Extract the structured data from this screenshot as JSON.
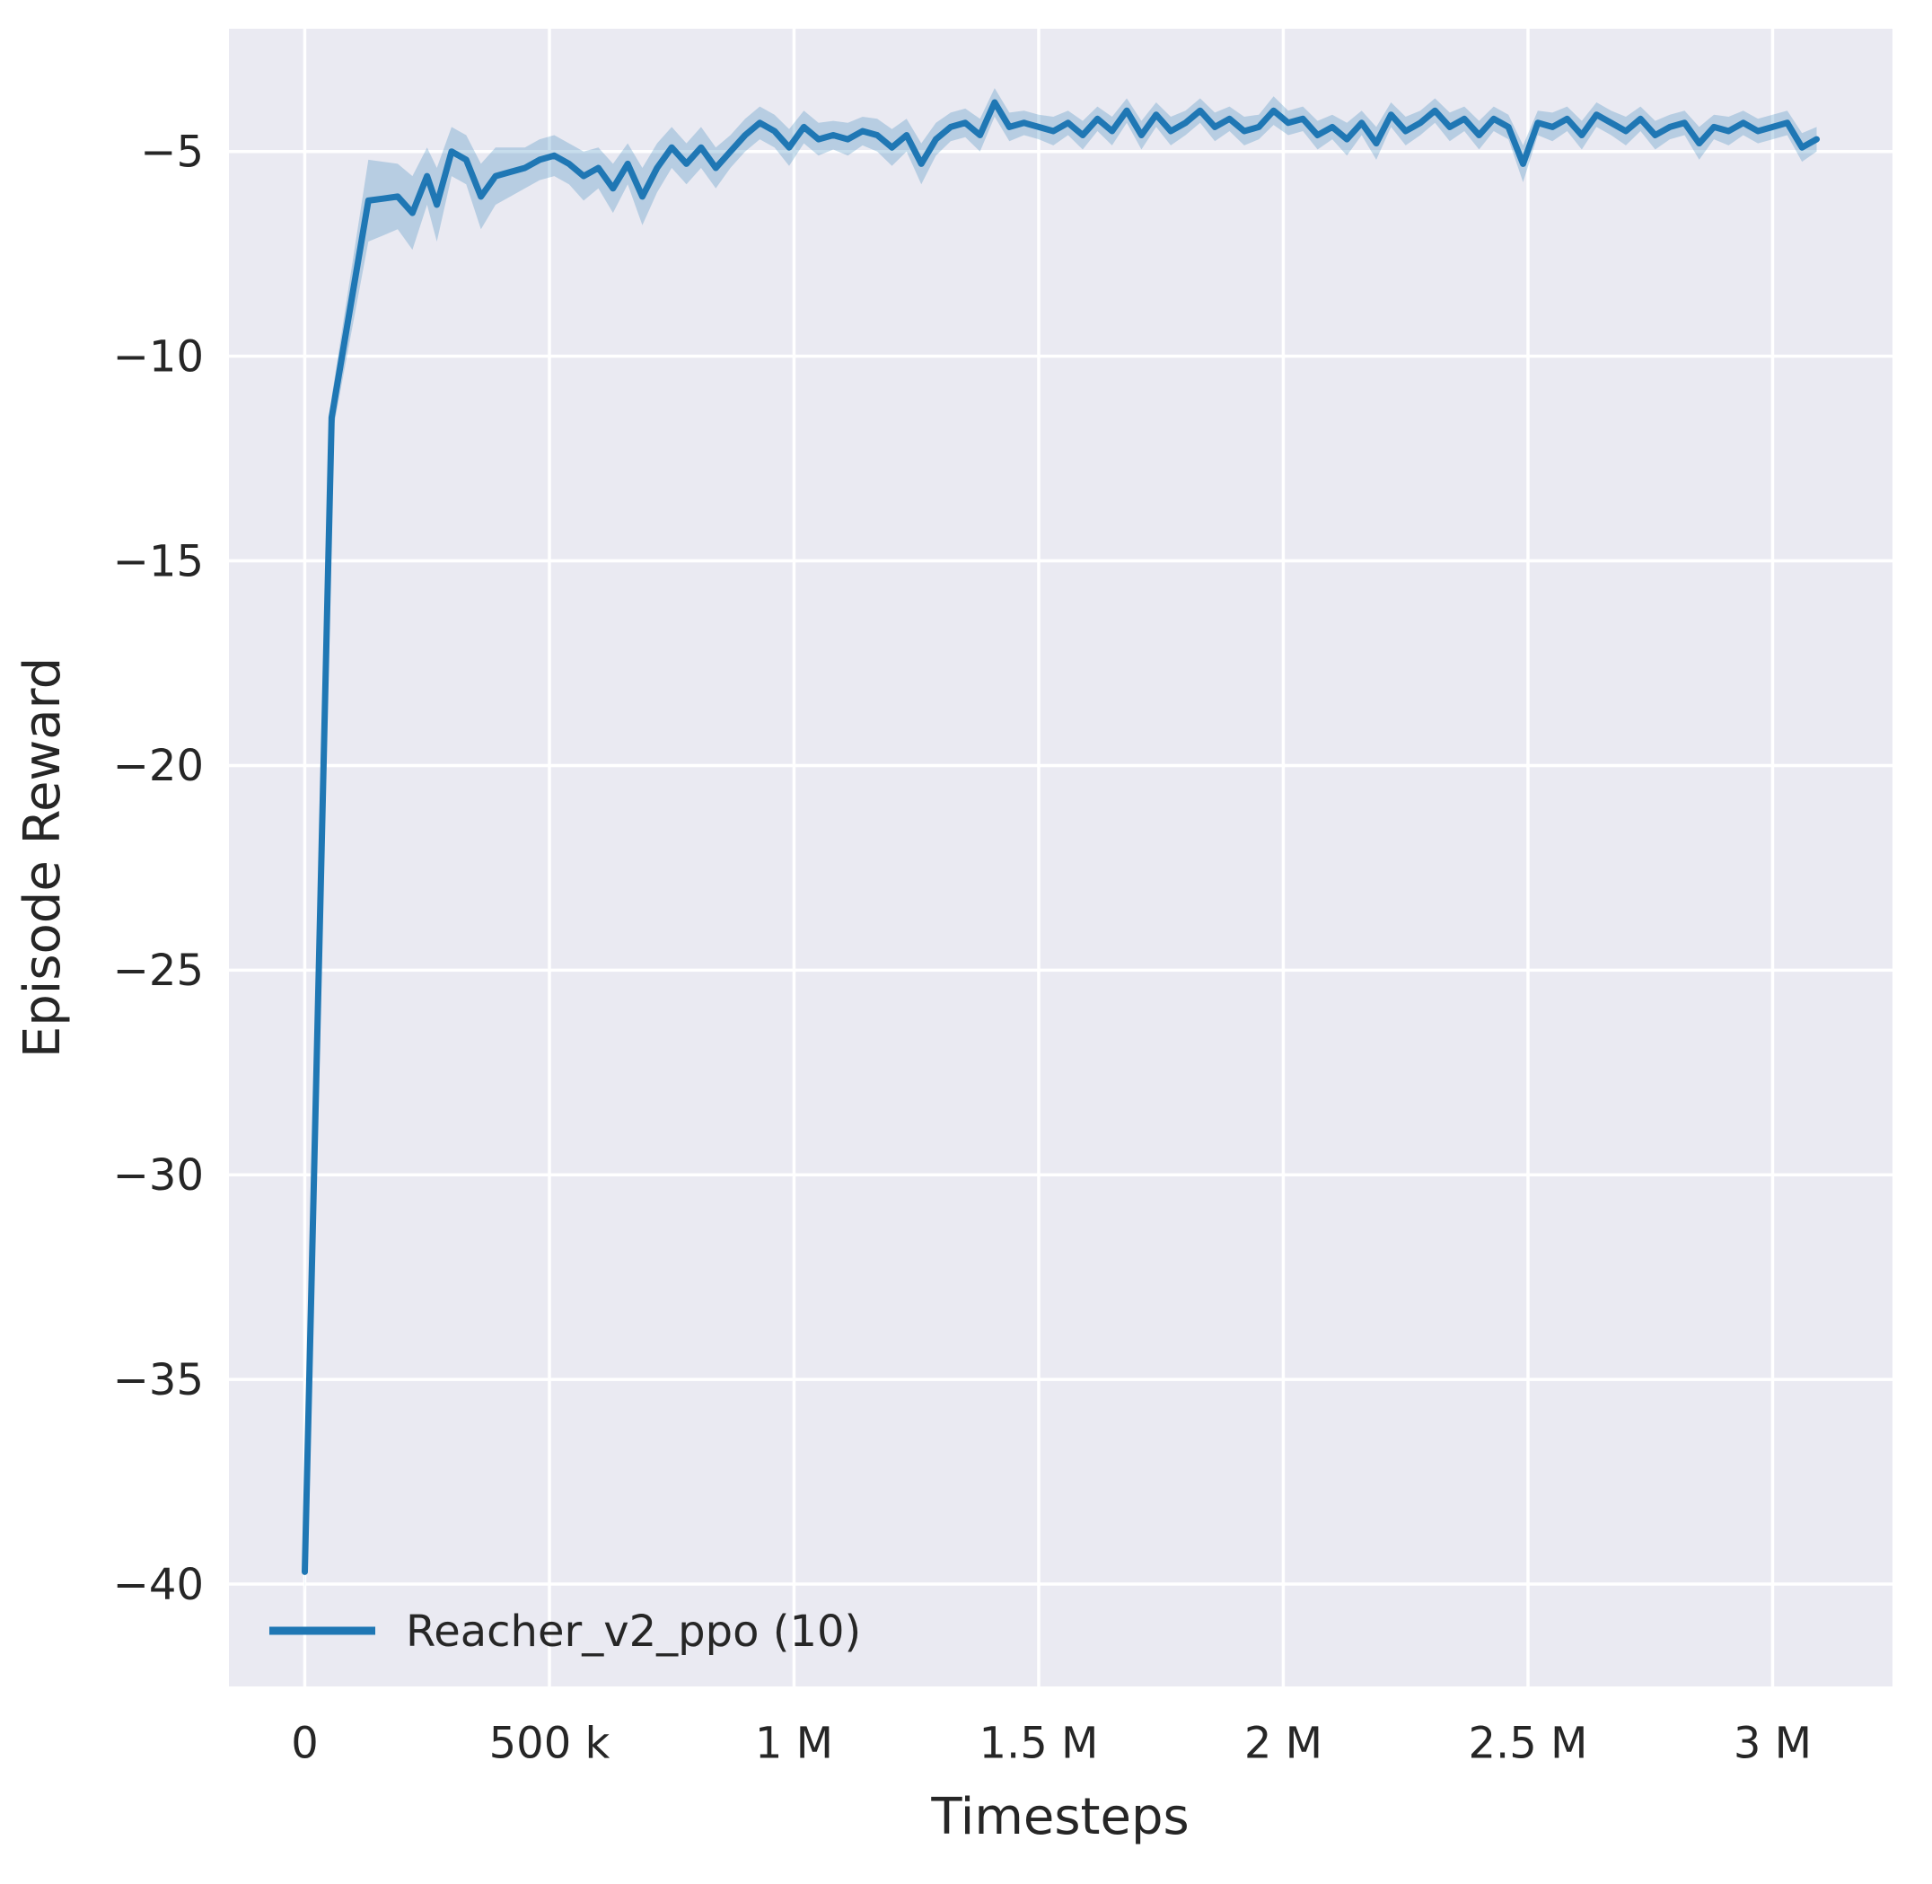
{
  "colors": {
    "figure_bg": "#ffffff",
    "plot_bg": "#eaeaf2",
    "grid": "#ffffff",
    "line": "#1f77b4",
    "text": "#262626"
  },
  "chart_data": {
    "type": "line",
    "title": "",
    "xlabel": "Timesteps",
    "ylabel": "Episode Reward",
    "grid": true,
    "legend_position": "lower left",
    "xlim": [
      -155000,
      3245000
    ],
    "ylim": [
      -42.5,
      -2.0
    ],
    "xticks": {
      "values": [
        0,
        500000,
        1000000,
        1500000,
        2000000,
        2500000,
        3000000
      ],
      "labels": [
        "0",
        "500 k",
        "1 M",
        "1.5 M",
        "2 M",
        "2.5 M",
        "3 M"
      ]
    },
    "yticks": {
      "values": [
        -5,
        -10,
        -15,
        -20,
        -25,
        -30,
        -35,
        -40
      ],
      "labels": [
        "−5",
        "−10",
        "−15",
        "−20",
        "−25",
        "−30",
        "−35",
        "−40"
      ]
    },
    "series": [
      {
        "name": "Reacher_v2_ppo (10)",
        "color": "#1f77b4",
        "band_opacity": 0.25,
        "x": [
          0,
          55000,
          130000,
          160000,
          190000,
          220000,
          250000,
          270000,
          300000,
          330000,
          360000,
          390000,
          420000,
          450000,
          480000,
          510000,
          540000,
          570000,
          600000,
          630000,
          660000,
          690000,
          720000,
          750000,
          780000,
          810000,
          840000,
          870000,
          900000,
          930000,
          960000,
          990000,
          1020000,
          1050000,
          1080000,
          1110000,
          1140000,
          1170000,
          1200000,
          1230000,
          1260000,
          1290000,
          1320000,
          1350000,
          1380000,
          1410000,
          1440000,
          1470000,
          1500000,
          1530000,
          1560000,
          1590000,
          1620000,
          1650000,
          1680000,
          1710000,
          1740000,
          1770000,
          1800000,
          1830000,
          1860000,
          1890000,
          1920000,
          1950000,
          1980000,
          2010000,
          2040000,
          2070000,
          2100000,
          2130000,
          2160000,
          2190000,
          2220000,
          2250000,
          2280000,
          2310000,
          2340000,
          2370000,
          2400000,
          2430000,
          2460000,
          2490000,
          2520000,
          2550000,
          2580000,
          2610000,
          2640000,
          2670000,
          2700000,
          2730000,
          2760000,
          2790000,
          2820000,
          2850000,
          2880000,
          2910000,
          2940000,
          2970000,
          3000000,
          3030000,
          3060000,
          3090000
        ],
        "y": [
          -39.7,
          -11.5,
          -6.2,
          -6.15,
          -6.1,
          -6.5,
          -5.6,
          -6.3,
          -5.0,
          -5.2,
          -6.1,
          -5.6,
          -5.5,
          -5.4,
          -5.2,
          -5.1,
          -5.3,
          -5.6,
          -5.4,
          -5.9,
          -5.3,
          -6.1,
          -5.4,
          -4.9,
          -5.3,
          -4.9,
          -5.4,
          -5.0,
          -4.6,
          -4.3,
          -4.5,
          -4.9,
          -4.4,
          -4.7,
          -4.6,
          -4.7,
          -4.5,
          -4.6,
          -4.9,
          -4.6,
          -5.3,
          -4.7,
          -4.4,
          -4.3,
          -4.6,
          -3.8,
          -4.4,
          -4.3,
          -4.4,
          -4.5,
          -4.3,
          -4.6,
          -4.2,
          -4.5,
          -4.0,
          -4.6,
          -4.1,
          -4.5,
          -4.3,
          -4.0,
          -4.4,
          -4.2,
          -4.5,
          -4.4,
          -4.0,
          -4.3,
          -4.2,
          -4.6,
          -4.4,
          -4.7,
          -4.3,
          -4.8,
          -4.1,
          -4.5,
          -4.3,
          -4.0,
          -4.4,
          -4.2,
          -4.6,
          -4.2,
          -4.4,
          -5.3,
          -4.3,
          -4.4,
          -4.2,
          -4.6,
          -4.1,
          -4.3,
          -4.5,
          -4.2,
          -4.6,
          -4.4,
          -4.3,
          -4.8,
          -4.4,
          -4.5,
          -4.3,
          -4.5,
          -4.4,
          -4.3,
          -4.9,
          -4.7
        ],
        "band_halfwidth": [
          0.5,
          0.5,
          1.0,
          0.9,
          0.8,
          0.9,
          0.7,
          0.9,
          0.6,
          0.6,
          0.8,
          0.7,
          0.6,
          0.5,
          0.5,
          0.5,
          0.5,
          0.6,
          0.5,
          0.6,
          0.5,
          0.7,
          0.6,
          0.5,
          0.5,
          0.5,
          0.5,
          0.4,
          0.4,
          0.4,
          0.4,
          0.45,
          0.4,
          0.4,
          0.35,
          0.4,
          0.35,
          0.4,
          0.45,
          0.4,
          0.5,
          0.4,
          0.35,
          0.35,
          0.4,
          0.35,
          0.35,
          0.3,
          0.3,
          0.35,
          0.3,
          0.35,
          0.3,
          0.35,
          0.3,
          0.35,
          0.3,
          0.35,
          0.3,
          0.3,
          0.35,
          0.3,
          0.35,
          0.3,
          0.35,
          0.3,
          0.3,
          0.35,
          0.3,
          0.4,
          0.3,
          0.4,
          0.3,
          0.35,
          0.3,
          0.3,
          0.35,
          0.3,
          0.35,
          0.3,
          0.3,
          0.45,
          0.3,
          0.35,
          0.3,
          0.35,
          0.3,
          0.3,
          0.35,
          0.3,
          0.35,
          0.3,
          0.3,
          0.4,
          0.3,
          0.35,
          0.3,
          0.3,
          0.3,
          0.3,
          0.35,
          0.3
        ]
      }
    ]
  }
}
